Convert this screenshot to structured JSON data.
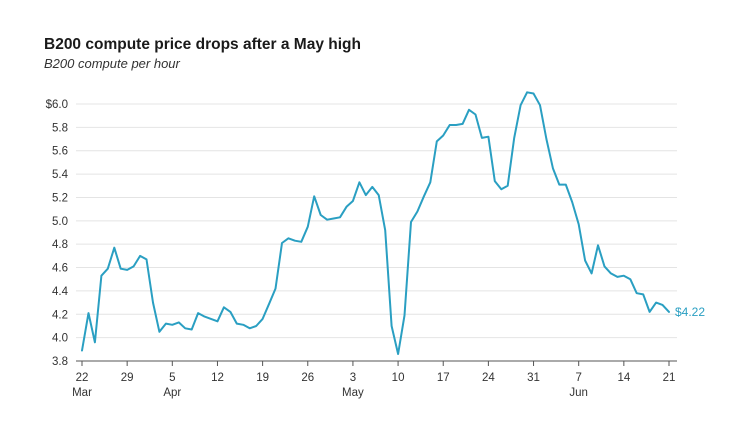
{
  "title": "B200 compute price drops after a May high",
  "subtitle": "B200 compute per hour",
  "colors": {
    "line": "#2a9fc2",
    "grid": "#e4e4e4",
    "axis": "#555555",
    "text": "#333333"
  },
  "chart_data": {
    "type": "line",
    "title": "B200 compute price drops after a May high",
    "subtitle": "B200 compute per hour",
    "xlabel": "",
    "ylabel": "",
    "ylim": [
      3.8,
      6.0
    ],
    "yticks": [
      3.8,
      4.0,
      4.2,
      4.4,
      4.6,
      4.8,
      5.0,
      5.2,
      5.4,
      5.6,
      5.8,
      6.0
    ],
    "ytick_labels": [
      "3.8",
      "4.0",
      "4.2",
      "4.4",
      "4.6",
      "4.8",
      "5.0",
      "5.2",
      "5.4",
      "5.6",
      "5.8",
      "$6.0"
    ],
    "xlim": [
      "2025-03-22",
      "2025-06-21"
    ],
    "xticks": [
      {
        "date": "2025-03-22",
        "day": "22",
        "month": "Mar"
      },
      {
        "date": "2025-03-29",
        "day": "29",
        "month": ""
      },
      {
        "date": "2025-04-05",
        "day": "5",
        "month": "Apr"
      },
      {
        "date": "2025-04-12",
        "day": "12",
        "month": ""
      },
      {
        "date": "2025-04-19",
        "day": "19",
        "month": ""
      },
      {
        "date": "2025-04-26",
        "day": "26",
        "month": ""
      },
      {
        "date": "2025-05-03",
        "day": "3",
        "month": "May"
      },
      {
        "date": "2025-05-10",
        "day": "10",
        "month": ""
      },
      {
        "date": "2025-05-17",
        "day": "17",
        "month": ""
      },
      {
        "date": "2025-05-24",
        "day": "24",
        "month": ""
      },
      {
        "date": "2025-05-31",
        "day": "31",
        "month": ""
      },
      {
        "date": "2025-06-07",
        "day": "7",
        "month": "Jun"
      },
      {
        "date": "2025-06-14",
        "day": "14",
        "month": ""
      },
      {
        "date": "2025-06-21",
        "day": "21",
        "month": ""
      }
    ],
    "grid": true,
    "end_label": "$4.22",
    "series": [
      {
        "points": [
          [
            "2025-03-22",
            3.89
          ],
          [
            "2025-03-23",
            4.21
          ],
          [
            "2025-03-24",
            3.96
          ],
          [
            "2025-03-25",
            4.53
          ],
          [
            "2025-03-26",
            4.59
          ],
          [
            "2025-03-27",
            4.77
          ],
          [
            "2025-03-28",
            4.59
          ],
          [
            "2025-03-29",
            4.58
          ],
          [
            "2025-03-30",
            4.61
          ],
          [
            "2025-03-31",
            4.7
          ],
          [
            "2025-04-01",
            4.67
          ],
          [
            "2025-04-02",
            4.3
          ],
          [
            "2025-04-03",
            4.05
          ],
          [
            "2025-04-04",
            4.12
          ],
          [
            "2025-04-05",
            4.11
          ],
          [
            "2025-04-06",
            4.13
          ],
          [
            "2025-04-07",
            4.08
          ],
          [
            "2025-04-08",
            4.07
          ],
          [
            "2025-04-09",
            4.21
          ],
          [
            "2025-04-10",
            4.18
          ],
          [
            "2025-04-11",
            4.16
          ],
          [
            "2025-04-12",
            4.14
          ],
          [
            "2025-04-13",
            4.26
          ],
          [
            "2025-04-14",
            4.22
          ],
          [
            "2025-04-15",
            4.12
          ],
          [
            "2025-04-16",
            4.11
          ],
          [
            "2025-04-17",
            4.08
          ],
          [
            "2025-04-18",
            4.1
          ],
          [
            "2025-04-19",
            4.16
          ],
          [
            "2025-04-20",
            4.29
          ],
          [
            "2025-04-21",
            4.42
          ],
          [
            "2025-04-22",
            4.81
          ],
          [
            "2025-04-23",
            4.85
          ],
          [
            "2025-04-24",
            4.83
          ],
          [
            "2025-04-25",
            4.82
          ],
          [
            "2025-04-26",
            4.95
          ],
          [
            "2025-04-27",
            5.21
          ],
          [
            "2025-04-28",
            5.05
          ],
          [
            "2025-04-29",
            5.01
          ],
          [
            "2025-04-30",
            5.02
          ],
          [
            "2025-05-01",
            5.03
          ],
          [
            "2025-05-02",
            5.12
          ],
          [
            "2025-05-03",
            5.17
          ],
          [
            "2025-05-04",
            5.33
          ],
          [
            "2025-05-05",
            5.22
          ],
          [
            "2025-05-06",
            5.29
          ],
          [
            "2025-05-07",
            5.22
          ],
          [
            "2025-05-08",
            4.92
          ],
          [
            "2025-05-09",
            4.1
          ],
          [
            "2025-05-10",
            3.86
          ],
          [
            "2025-05-11",
            4.19
          ],
          [
            "2025-05-12",
            4.99
          ],
          [
            "2025-05-13",
            5.08
          ],
          [
            "2025-05-14",
            5.21
          ],
          [
            "2025-05-15",
            5.33
          ],
          [
            "2025-05-16",
            5.68
          ],
          [
            "2025-05-17",
            5.73
          ],
          [
            "2025-05-18",
            5.82
          ],
          [
            "2025-05-19",
            5.82
          ],
          [
            "2025-05-20",
            5.83
          ],
          [
            "2025-05-21",
            5.95
          ],
          [
            "2025-05-22",
            5.91
          ],
          [
            "2025-05-23",
            5.71
          ],
          [
            "2025-05-24",
            5.72
          ],
          [
            "2025-05-25",
            5.34
          ],
          [
            "2025-05-26",
            5.27
          ],
          [
            "2025-05-27",
            5.3
          ],
          [
            "2025-05-28",
            5.71
          ],
          [
            "2025-05-29",
            5.99
          ],
          [
            "2025-05-30",
            6.1
          ],
          [
            "2025-05-31",
            6.09
          ],
          [
            "2025-06-01",
            5.99
          ],
          [
            "2025-06-02",
            5.7
          ],
          [
            "2025-06-03",
            5.45
          ],
          [
            "2025-06-04",
            5.31
          ],
          [
            "2025-06-05",
            5.31
          ],
          [
            "2025-06-06",
            5.16
          ],
          [
            "2025-06-07",
            4.97
          ],
          [
            "2025-06-08",
            4.66
          ],
          [
            "2025-06-09",
            4.55
          ],
          [
            "2025-06-10",
            4.79
          ],
          [
            "2025-06-11",
            4.61
          ],
          [
            "2025-06-12",
            4.55
          ],
          [
            "2025-06-13",
            4.52
          ],
          [
            "2025-06-14",
            4.53
          ],
          [
            "2025-06-15",
            4.5
          ],
          [
            "2025-06-16",
            4.38
          ],
          [
            "2025-06-17",
            4.37
          ],
          [
            "2025-06-18",
            4.22
          ],
          [
            "2025-06-19",
            4.3
          ],
          [
            "2025-06-20",
            4.28
          ],
          [
            "2025-06-21",
            4.22
          ]
        ]
      }
    ]
  }
}
